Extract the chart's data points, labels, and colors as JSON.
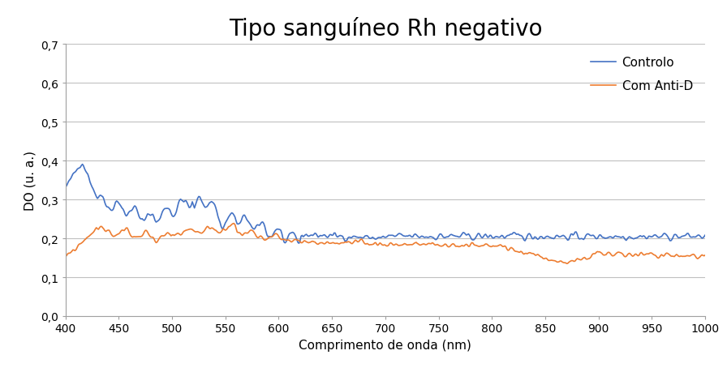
{
  "title": "Tipo sanguíneo Rh negativo",
  "xlabel": "Comprimento de onda (nm)",
  "ylabel": "DO (u. a.)",
  "xlim": [
    400,
    1000
  ],
  "ylim": [
    0.0,
    0.7
  ],
  "yticks": [
    0.0,
    0.1,
    0.2,
    0.3,
    0.4,
    0.5,
    0.6,
    0.7
  ],
  "ytick_labels": [
    "0,0",
    "0,1",
    "0,2",
    "0,3",
    "0,4",
    "0,5",
    "0,6",
    "0,7"
  ],
  "xticks": [
    400,
    450,
    500,
    550,
    600,
    650,
    700,
    750,
    800,
    850,
    900,
    950,
    1000
  ],
  "color_blue": "#4472C4",
  "color_orange": "#ED7D31",
  "legend_labels": [
    "Controlo",
    "Com Anti-D"
  ],
  "title_fontsize": 20,
  "axis_fontsize": 11,
  "tick_fontsize": 10,
  "legend_fontsize": 11,
  "background_color": "#ffffff",
  "grid_color": "#C0C0C0",
  "line_width": 1.2
}
